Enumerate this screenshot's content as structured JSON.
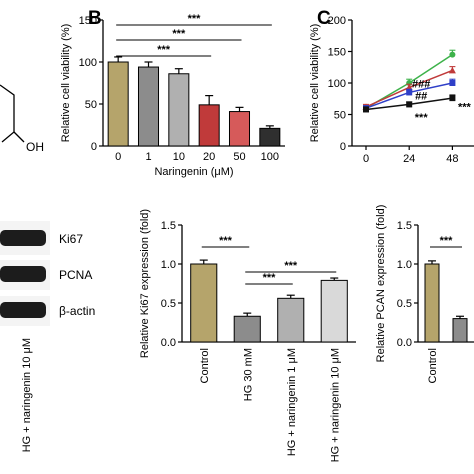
{
  "panels": {
    "b_label": "B",
    "c_label": "C"
  },
  "chem": {
    "oh_label": "OH"
  },
  "western_blot": {
    "bands": [
      "Ki67",
      "PCNA",
      "β-actin"
    ],
    "lane_label": "HG + naringenin 10 μM"
  },
  "colors": {
    "control": "#b5a46b",
    "gray_dark": "#8c8c8c",
    "gray_mid": "#b0b0b0",
    "gray_light": "#d9d9d9",
    "red": "#c03a3a",
    "green": "#3db24a",
    "blue": "#2f3fc8"
  },
  "chart_data": [
    {
      "id": "B",
      "type": "bar",
      "xlabel": "Naringenin (μM)",
      "ylabel": "Relative cell viability (%)",
      "ylim": [
        0,
        150
      ],
      "yticks": [
        0,
        50,
        100,
        150
      ],
      "categories": [
        "0",
        "1",
        "10",
        "20",
        "50",
        "100"
      ],
      "values": [
        100,
        94,
        86,
        49,
        41,
        21
      ],
      "errors": [
        6,
        6,
        6,
        11,
        5,
        3
      ],
      "colors": [
        "#b5a46b",
        "#8c8c8c",
        "#b0b0b0",
        "#c03a3a",
        "#d65a5a",
        "#2f2f2f"
      ],
      "significance": [
        {
          "from": 0,
          "to": 5,
          "label": "***"
        },
        {
          "from": 0,
          "to": 4,
          "label": "***"
        },
        {
          "from": 0,
          "to": 3,
          "label": "***"
        }
      ]
    },
    {
      "id": "C",
      "type": "line",
      "xlabel": "",
      "ylabel": "Relative cell viability (%)",
      "ylim": [
        0,
        200
      ],
      "yticks": [
        0,
        50,
        100,
        150,
        200
      ],
      "x": [
        0,
        24,
        48
      ],
      "xticks": [
        "0",
        "24",
        "48"
      ],
      "series": [
        {
          "color": "#3db24a",
          "values": [
            60,
            100,
            145
          ],
          "errors": [
            4,
            6,
            7
          ],
          "marker": "circle"
        },
        {
          "color": "#c03a3a",
          "values": [
            62,
            93,
            120
          ],
          "errors": [
            4,
            5,
            6
          ],
          "marker": "triangle"
        },
        {
          "color": "#2f3fc8",
          "values": [
            60,
            85,
            100
          ],
          "errors": [
            4,
            5,
            6
          ],
          "marker": "square"
        },
        {
          "color": "#111111",
          "values": [
            58,
            66,
            76
          ],
          "errors": [
            4,
            4,
            5
          ],
          "marker": "square"
        }
      ],
      "annotations": [
        {
          "x": 24,
          "y": 99,
          "label": "###"
        },
        {
          "x": 24,
          "y": 80,
          "label": "##"
        },
        {
          "x": 24,
          "y": 46,
          "label": "***"
        },
        {
          "x": 48,
          "y": 63,
          "label": "***"
        }
      ]
    },
    {
      "id": "D",
      "type": "bar",
      "xlabel": "",
      "ylabel": "Relative Ki67 expression (fold)",
      "ylim": [
        0,
        1.5
      ],
      "yticks": [
        "0.0",
        "0.5",
        "1.0",
        "1.5"
      ],
      "categories": [
        "Control",
        "HG 30 mM",
        "HG + naringenin 1 μM",
        "HG + naringenin 10 μM"
      ],
      "values": [
        1.0,
        0.33,
        0.56,
        0.79
      ],
      "errors": [
        0.05,
        0.04,
        0.04,
        0.03
      ],
      "colors": [
        "#b5a46b",
        "#8c8c8c",
        "#b0b0b0",
        "#d9d9d9"
      ],
      "significance": [
        {
          "from": 0,
          "to": 1,
          "label": "***"
        },
        {
          "from": 1,
          "to": 3,
          "label": "***"
        },
        {
          "from": 1,
          "to": 2,
          "label": "***"
        }
      ]
    },
    {
      "id": "E",
      "type": "bar",
      "xlabel": "",
      "ylabel": "Relative PCAN expression (fold)",
      "ylim": [
        0,
        1.5
      ],
      "yticks": [
        "0.0",
        "0.5",
        "1.0",
        "1.5"
      ],
      "categories": [
        "Control",
        ""
      ],
      "values": [
        1.0,
        0.3
      ],
      "errors": [
        0.04,
        0.03
      ],
      "colors": [
        "#b5a46b",
        "#8c8c8c"
      ],
      "significance": [
        {
          "from": 0,
          "to": 1,
          "label": "***"
        }
      ]
    }
  ]
}
